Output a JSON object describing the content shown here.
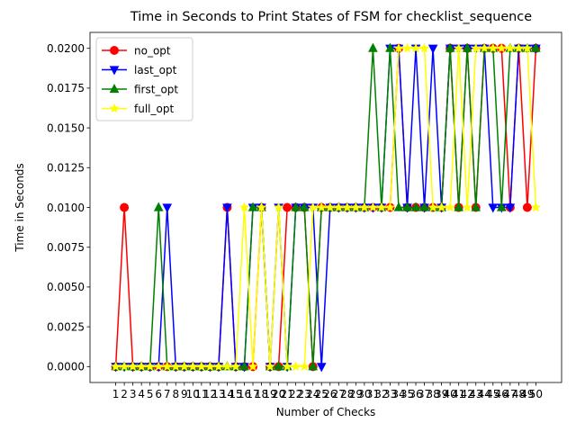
{
  "chart_data": {
    "type": "line",
    "title": "Time in Seconds to Print States of FSM for checklist_sequence",
    "xlabel": "Number of Checks",
    "ylabel": "Time in Seconds",
    "x": [
      1,
      2,
      3,
      4,
      5,
      6,
      7,
      8,
      9,
      10,
      11,
      12,
      13,
      14,
      15,
      16,
      17,
      18,
      19,
      20,
      21,
      22,
      23,
      24,
      25,
      26,
      27,
      28,
      29,
      30,
      31,
      32,
      33,
      34,
      35,
      36,
      37,
      38,
      39,
      40,
      41,
      42,
      43,
      44,
      45,
      46,
      47,
      48,
      49,
      50
    ],
    "x_tick_labels": [
      "1",
      "2",
      "3",
      "4",
      "5",
      "6",
      "7",
      "8",
      "9",
      "10",
      "11",
      "12",
      "13",
      "14",
      "15",
      "16",
      "17",
      "18",
      "19",
      "20",
      "21",
      "22",
      "23",
      "24",
      "25",
      "26",
      "27",
      "28",
      "29",
      "30",
      "31",
      "32",
      "33",
      "34",
      "35",
      "36",
      "37",
      "38",
      "39",
      "40",
      "41",
      "42",
      "43",
      "44",
      "45",
      "46",
      "47",
      "48",
      "49",
      "50"
    ],
    "ylim": [
      -0.001,
      0.021
    ],
    "y_ticks": [
      0.0,
      0.0025,
      0.005,
      0.0075,
      0.01,
      0.0125,
      0.015,
      0.0175,
      0.02
    ],
    "y_tick_labels": [
      "0.0000",
      "0.0025",
      "0.0050",
      "0.0075",
      "0.0100",
      "0.0125",
      "0.0150",
      "0.0175",
      "0.0200"
    ],
    "grid": false,
    "legend_position": "top-left",
    "series": [
      {
        "name": "no_opt",
        "color": "#ff0000",
        "marker": "circle",
        "values": [
          0,
          0.01,
          0,
          0,
          0,
          0,
          0,
          0,
          0,
          0,
          0,
          0,
          0,
          0.01,
          0,
          0,
          0,
          0.01,
          0,
          0,
          0.01,
          0.01,
          0.01,
          0,
          0.01,
          0.01,
          0.01,
          0.01,
          0.01,
          0.01,
          0.01,
          0.01,
          0.01,
          0.02,
          0.01,
          0.01,
          0.01,
          0.01,
          0.01,
          0.02,
          0.01,
          0.02,
          0.01,
          0.02,
          0.02,
          0.02,
          0.01,
          0.02,
          0.01,
          0.02
        ]
      },
      {
        "name": "last_opt",
        "color": "#0000ff",
        "marker": "triangle-down",
        "values": [
          0,
          0,
          0,
          0,
          0,
          0,
          0.01,
          0,
          0,
          0,
          0,
          0,
          0,
          0.01,
          0,
          0,
          0.01,
          0.01,
          0,
          0.01,
          0,
          0.01,
          0.01,
          0.01,
          0,
          0.01,
          0.01,
          0.01,
          0.01,
          0.01,
          0.01,
          0.01,
          0.02,
          0.02,
          0.01,
          0.02,
          0.01,
          0.02,
          0.01,
          0.02,
          0.02,
          0.02,
          0.02,
          0.02,
          0.01,
          0.01,
          0.01,
          0.02,
          0.02,
          0.02
        ]
      },
      {
        "name": "first_opt",
        "color": "#008000",
        "marker": "triangle-up",
        "values": [
          0,
          0,
          0,
          0,
          0,
          0.01,
          0,
          0,
          0,
          0,
          0,
          0,
          0,
          0,
          0,
          0,
          0.01,
          0.01,
          0,
          0,
          0,
          0.01,
          0.01,
          0,
          0.01,
          0.01,
          0.01,
          0.01,
          0.01,
          0.01,
          0.02,
          0.01,
          0.02,
          0.01,
          0.01,
          0.01,
          0.01,
          0.01,
          0.01,
          0.02,
          0.01,
          0.02,
          0.01,
          0.02,
          0.02,
          0.01,
          0.02,
          0.02,
          0.02,
          0.02
        ]
      },
      {
        "name": "full_opt",
        "color": "#ffff00",
        "marker": "star",
        "values": [
          0,
          0,
          0,
          0,
          0,
          0,
          0,
          0,
          0,
          0,
          0,
          0,
          0,
          0,
          0,
          0.01,
          0,
          0.01,
          0,
          0.01,
          0,
          0,
          0,
          0.01,
          0.01,
          0.01,
          0.01,
          0.01,
          0.01,
          0.01,
          0.01,
          0.01,
          0.01,
          0.02,
          0.02,
          0.02,
          0.02,
          0.01,
          0.01,
          0.01,
          0.02,
          0.01,
          0.02,
          0.02,
          0.02,
          0.02,
          0.02,
          0.02,
          0.02,
          0.01
        ]
      }
    ]
  }
}
